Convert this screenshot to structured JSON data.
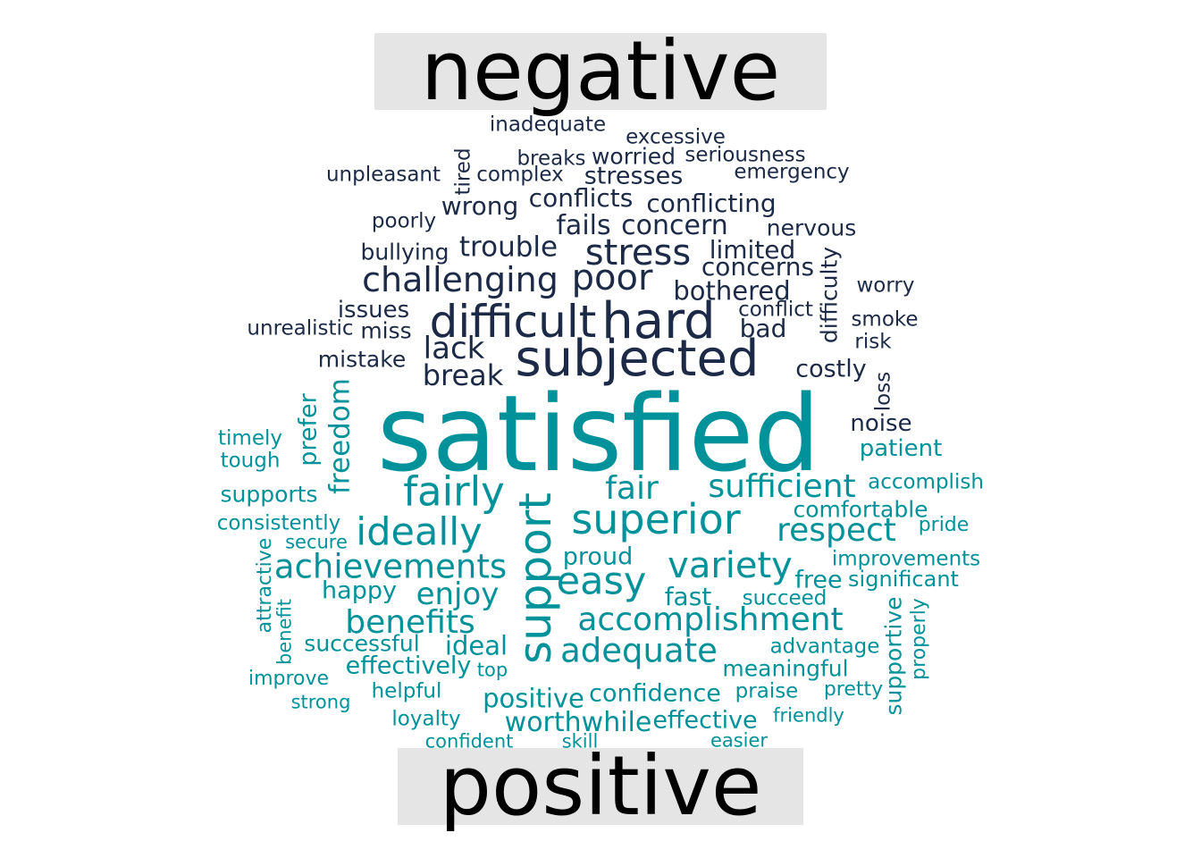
{
  "colors": {
    "negative": "#1c2a47",
    "positive": "#00929a",
    "label_bg": "#e5e5e5",
    "label_text": "#000000"
  },
  "labels": {
    "negative": "negative",
    "positive": "positive"
  },
  "negative_words": [
    "inadequate",
    "excessive",
    "breaks",
    "worried",
    "seriousness",
    "tired",
    "unpleasant",
    "complex",
    "stresses",
    "emergency",
    "conflicts",
    "conflicting",
    "wrong",
    "poorly",
    "fails",
    "concern",
    "nervous",
    "bullying",
    "trouble",
    "stress",
    "limited",
    "difficulty",
    "challenging",
    "poor",
    "concerns",
    "worry",
    "bothered",
    "issues",
    "conflict",
    "difficult",
    "hard",
    "smoke",
    "unrealistic",
    "miss",
    "bad",
    "risk",
    "lack",
    "mistake",
    "subjected",
    "costly",
    "break",
    "loss",
    "noise"
  ],
  "positive_words": [
    "satisfied",
    "prefer",
    "freedom",
    "timely",
    "patient",
    "tough",
    "fairly",
    "fair",
    "sufficient",
    "accomplish",
    "supports",
    "support",
    "superior",
    "comfortable",
    "consistently",
    "ideally",
    "respect",
    "pride",
    "secure",
    "proud",
    "improvements",
    "attractive",
    "achievements",
    "variety",
    "easy",
    "free",
    "significant",
    "happy",
    "enjoy",
    "fast",
    "succeed",
    "benefit",
    "accomplishment",
    "benefits",
    "supportive",
    "properly",
    "successful",
    "advantage",
    "ideal",
    "adequate",
    "effectively",
    "top",
    "meaningful",
    "improve",
    "pretty",
    "helpful",
    "positive",
    "confidence",
    "praise",
    "strong",
    "loyalty",
    "effective",
    "worthwhile",
    "friendly",
    "confident",
    "skill",
    "easier"
  ]
}
